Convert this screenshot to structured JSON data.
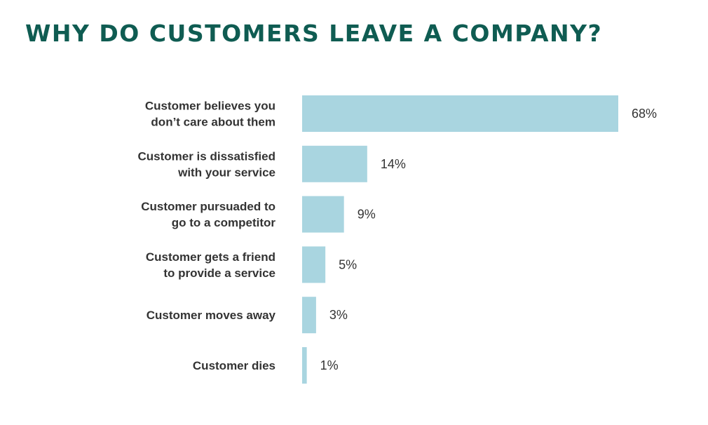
{
  "title": "WHY DO CUSTOMERS LEAVE A COMPANY?",
  "colors": {
    "title": "#0f5c52",
    "bar": "#a9d5e0",
    "text": "#333333"
  },
  "chart_data": {
    "type": "bar",
    "orientation": "horizontal",
    "title": "WHY DO CUSTOMERS LEAVE A COMPANY?",
    "categories": [
      [
        "Customer believes you",
        "don’t care about them"
      ],
      [
        "Customer is dissatisfied",
        "with your service"
      ],
      [
        "Customer pursuaded to",
        "go to a competitor"
      ],
      [
        "Customer gets a friend",
        "to provide a service"
      ],
      [
        "Customer moves away"
      ],
      [
        "Customer dies"
      ]
    ],
    "values": [
      68,
      14,
      9,
      5,
      3,
      1
    ],
    "value_labels": [
      "68%",
      "14%",
      "9%",
      "5%",
      "3%",
      "1%"
    ],
    "xlim": [
      0,
      68
    ],
    "grid": false,
    "legend": "none"
  }
}
